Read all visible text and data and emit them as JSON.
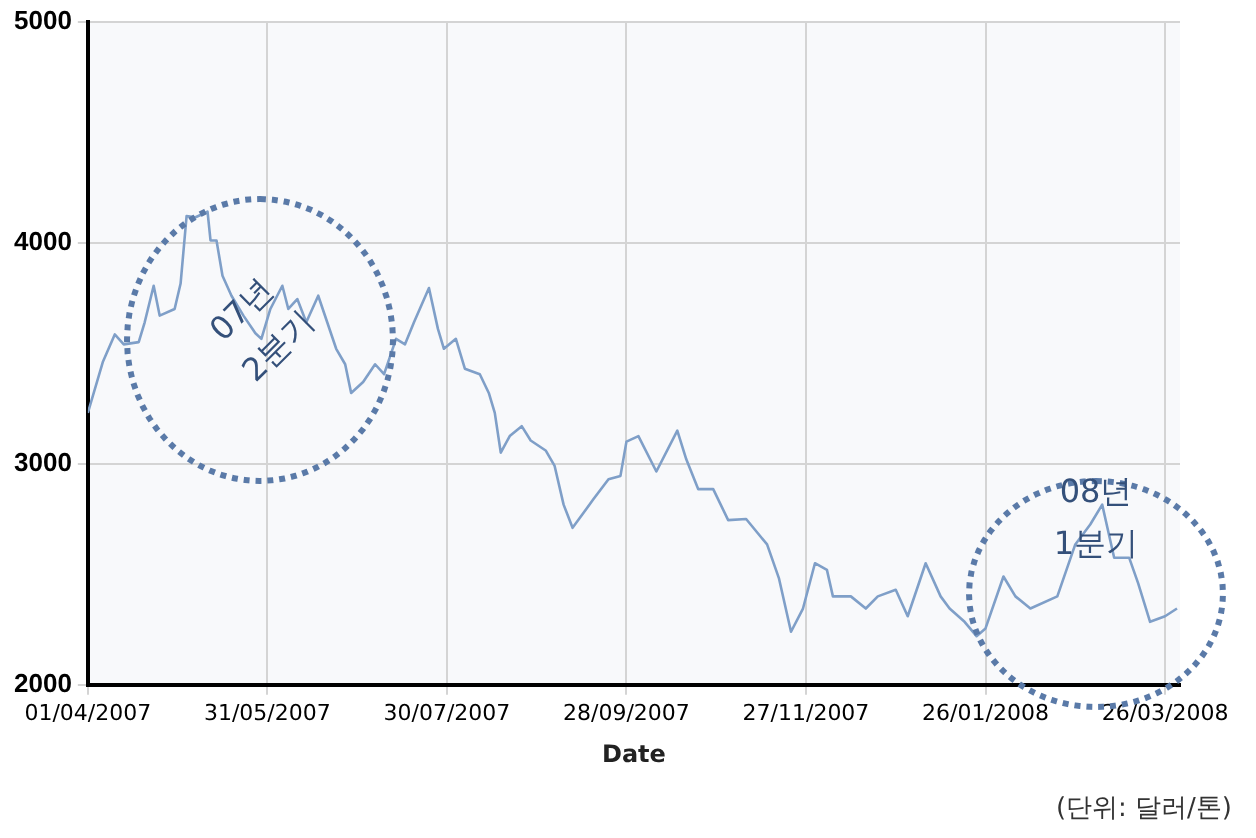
{
  "chart_data": {
    "type": "line",
    "xlabel": "Date",
    "x": [
      "2007-04-01",
      "2007-04-06",
      "2007-04-10",
      "2007-04-13",
      "2007-04-18",
      "2007-04-20",
      "2007-04-23",
      "2007-04-25",
      "2007-04-30",
      "2007-05-02",
      "2007-05-04",
      "2007-05-07",
      "2007-05-11",
      "2007-05-12",
      "2007-05-14",
      "2007-05-16",
      "2007-05-19",
      "2007-05-23",
      "2007-05-27",
      "2007-05-29",
      "2007-06-01",
      "2007-06-05",
      "2007-06-07",
      "2007-06-10",
      "2007-06-13",
      "2007-06-17",
      "2007-06-20",
      "2007-06-23",
      "2007-06-26",
      "2007-06-28",
      "2007-07-02",
      "2007-07-06",
      "2007-07-09",
      "2007-07-13",
      "2007-07-16",
      "2007-07-19",
      "2007-07-24",
      "2007-07-27",
      "2007-07-29",
      "2007-08-02",
      "2007-08-05",
      "2007-08-10",
      "2007-08-13",
      "2007-08-15",
      "2007-08-17",
      "2007-08-20",
      "2007-08-24",
      "2007-08-27",
      "2007-09-01",
      "2007-09-04",
      "2007-09-07",
      "2007-09-10",
      "2007-09-17",
      "2007-09-22",
      "2007-09-26",
      "2007-09-28",
      "2007-10-02",
      "2007-10-08",
      "2007-10-15",
      "2007-10-18",
      "2007-10-22",
      "2007-10-27",
      "2007-11-01",
      "2007-11-07",
      "2007-11-14",
      "2007-11-18",
      "2007-11-22",
      "2007-11-26",
      "2007-11-30",
      "2007-12-04",
      "2007-12-06",
      "2007-12-12",
      "2007-12-17",
      "2007-12-21",
      "2007-12-27",
      "2007-12-31",
      "2008-01-06",
      "2008-01-11",
      "2008-01-14",
      "2008-01-19",
      "2008-01-23",
      "2008-01-26",
      "2008-02-01",
      "2008-02-05",
      "2008-02-10",
      "2008-02-19",
      "2008-02-25",
      "2008-03-01",
      "2008-03-05",
      "2008-03-09",
      "2008-03-14",
      "2008-03-17",
      "2008-03-21",
      "2008-03-26",
      "2008-03-30"
    ],
    "series": [
      {
        "color": "#7f9fc8",
        "values": [
          3230,
          3460,
          3585,
          3540,
          3550,
          3640,
          3805,
          3670,
          3700,
          3815,
          4120,
          4115,
          4140,
          4010,
          4010,
          3850,
          3760,
          3670,
          3590,
          3565,
          3700,
          3805,
          3700,
          3745,
          3640,
          3760,
          3640,
          3520,
          3450,
          3320,
          3370,
          3450,
          3405,
          3565,
          3540,
          3640,
          3795,
          3610,
          3520,
          3565,
          3430,
          3405,
          3320,
          3230,
          3050,
          3125,
          3170,
          3105,
          3060,
          2990,
          2815,
          2710,
          2840,
          2930,
          2945,
          3100,
          3125,
          2965,
          3150,
          3020,
          2885,
          2885,
          2745,
          2750,
          2635,
          2480,
          2240,
          2345,
          2550,
          2520,
          2400,
          2400,
          2345,
          2400,
          2430,
          2310,
          2550,
          2400,
          2345,
          2285,
          2220,
          2255,
          2490,
          2400,
          2345,
          2400,
          2635,
          2725,
          2815,
          2575,
          2575,
          2460,
          2285,
          2310,
          2345
        ]
      }
    ],
    "xlim": [
      "2007-04-01",
      "2008-03-31"
    ],
    "xticks": [
      {
        "value": "2007-04-01",
        "label": "01/04/2007"
      },
      {
        "value": "2007-05-31",
        "label": "31/05/2007"
      },
      {
        "value": "2007-07-30",
        "label": "30/07/2007"
      },
      {
        "value": "2007-09-28",
        "label": "28/09/2007"
      },
      {
        "value": "2007-11-27",
        "label": "27/11/2007"
      },
      {
        "value": "2008-01-26",
        "label": "26/01/2008"
      },
      {
        "value": "2008-03-26",
        "label": "26/03/2008"
      }
    ],
    "ylim": [
      2000,
      5000
    ],
    "yticks": [
      2000,
      3000,
      4000,
      5000
    ],
    "grid": true,
    "legend": false,
    "marker": "none",
    "line_style": "solid",
    "annotations": [
      "07년 2분기",
      "08년 1분기",
      "(단위: 달러/톤)"
    ]
  }
}
